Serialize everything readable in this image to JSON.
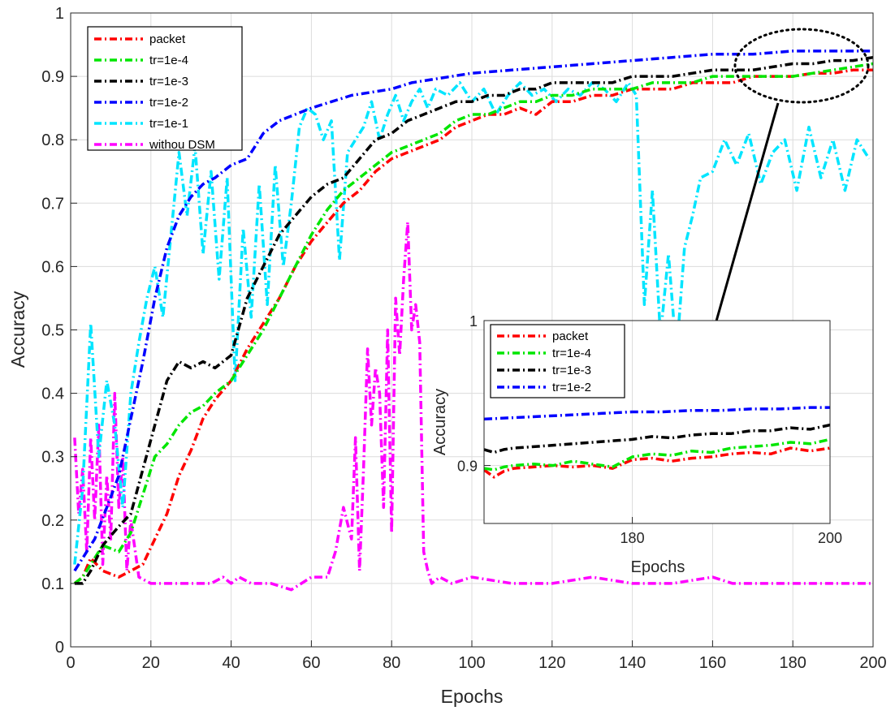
{
  "colors": {
    "packet": "#ff0000",
    "tr1e4": "#00e600",
    "tr1e3": "#000000",
    "tr1e2": "#0000ff",
    "tr1e1": "#00e5ff",
    "withoutDSM": "#ff00ff",
    "arrow": "#000000"
  },
  "chart_data": [
    {
      "type": "line",
      "title": "",
      "xlabel": "Epochs",
      "ylabel": "Accuracy",
      "xlim": [
        0,
        200
      ],
      "ylim": [
        0,
        1
      ],
      "xticks": [
        "0",
        "20",
        "40",
        "60",
        "80",
        "100",
        "120",
        "140",
        "160",
        "180",
        "200"
      ],
      "yticks": [
        "0",
        "0.1",
        "0.2",
        "0.3",
        "0.4",
        "0.5",
        "0.6",
        "0.7",
        "0.8",
        "0.9",
        "1"
      ],
      "grid": true,
      "legend_position": "top-left",
      "series": [
        {
          "name": "packet",
          "color_key": "packet",
          "x": [
            1,
            3,
            5,
            8,
            12,
            15,
            18,
            21,
            24,
            27,
            30,
            33,
            36,
            40,
            44,
            48,
            52,
            56,
            60,
            64,
            68,
            72,
            76,
            80,
            84,
            88,
            92,
            96,
            100,
            104,
            108,
            112,
            116,
            120,
            125,
            130,
            135,
            140,
            145,
            150,
            155,
            160,
            165,
            170,
            175,
            180,
            185,
            190,
            195,
            200
          ],
          "y": [
            0.1,
            0.11,
            0.14,
            0.12,
            0.11,
            0.12,
            0.13,
            0.17,
            0.21,
            0.27,
            0.31,
            0.36,
            0.39,
            0.42,
            0.47,
            0.51,
            0.55,
            0.6,
            0.64,
            0.67,
            0.7,
            0.72,
            0.75,
            0.77,
            0.78,
            0.79,
            0.8,
            0.82,
            0.83,
            0.84,
            0.84,
            0.85,
            0.84,
            0.86,
            0.86,
            0.87,
            0.87,
            0.88,
            0.88,
            0.88,
            0.89,
            0.89,
            0.89,
            0.9,
            0.9,
            0.9,
            0.905,
            0.905,
            0.91,
            0.91
          ]
        },
        {
          "name": "tr=1e-4",
          "color_key": "tr1e4",
          "x": [
            1,
            3,
            5,
            8,
            12,
            15,
            18,
            21,
            24,
            27,
            30,
            33,
            36,
            40,
            44,
            48,
            52,
            56,
            60,
            64,
            68,
            72,
            76,
            80,
            84,
            88,
            92,
            96,
            100,
            104,
            108,
            112,
            116,
            120,
            125,
            130,
            135,
            140,
            145,
            150,
            155,
            160,
            165,
            170,
            175,
            180,
            185,
            190,
            195,
            200
          ],
          "y": [
            0.1,
            0.11,
            0.13,
            0.16,
            0.15,
            0.18,
            0.24,
            0.3,
            0.32,
            0.35,
            0.37,
            0.38,
            0.4,
            0.42,
            0.46,
            0.5,
            0.55,
            0.6,
            0.65,
            0.69,
            0.72,
            0.74,
            0.76,
            0.78,
            0.79,
            0.8,
            0.81,
            0.83,
            0.84,
            0.84,
            0.85,
            0.86,
            0.86,
            0.87,
            0.87,
            0.88,
            0.88,
            0.88,
            0.89,
            0.89,
            0.89,
            0.9,
            0.9,
            0.9,
            0.9,
            0.9,
            0.905,
            0.91,
            0.915,
            0.92
          ]
        },
        {
          "name": "tr=1e-3",
          "color_key": "tr1e3",
          "x": [
            1,
            3,
            5,
            8,
            12,
            15,
            18,
            21,
            24,
            27,
            30,
            33,
            36,
            40,
            44,
            48,
            52,
            56,
            60,
            64,
            68,
            72,
            76,
            80,
            84,
            88,
            92,
            96,
            100,
            104,
            108,
            112,
            116,
            120,
            125,
            130,
            135,
            140,
            145,
            150,
            155,
            160,
            165,
            170,
            175,
            180,
            185,
            190,
            195,
            200
          ],
          "y": [
            0.1,
            0.1,
            0.12,
            0.16,
            0.19,
            0.21,
            0.28,
            0.35,
            0.42,
            0.45,
            0.44,
            0.45,
            0.44,
            0.46,
            0.55,
            0.6,
            0.65,
            0.68,
            0.71,
            0.73,
            0.74,
            0.77,
            0.8,
            0.81,
            0.83,
            0.84,
            0.85,
            0.86,
            0.86,
            0.87,
            0.87,
            0.88,
            0.88,
            0.89,
            0.89,
            0.89,
            0.89,
            0.9,
            0.9,
            0.9,
            0.905,
            0.91,
            0.91,
            0.91,
            0.915,
            0.92,
            0.92,
            0.925,
            0.925,
            0.93
          ]
        },
        {
          "name": "tr=1e-2",
          "color_key": "tr1e2",
          "x": [
            1,
            3,
            6,
            9,
            12,
            15,
            18,
            21,
            24,
            27,
            30,
            33,
            36,
            40,
            44,
            48,
            52,
            56,
            60,
            65,
            70,
            75,
            80,
            85,
            90,
            95,
            100,
            110,
            120,
            130,
            140,
            150,
            160,
            170,
            180,
            190,
            200
          ],
          "y": [
            0.12,
            0.14,
            0.17,
            0.22,
            0.27,
            0.36,
            0.45,
            0.55,
            0.63,
            0.68,
            0.71,
            0.73,
            0.74,
            0.76,
            0.77,
            0.81,
            0.83,
            0.84,
            0.85,
            0.86,
            0.87,
            0.875,
            0.88,
            0.89,
            0.895,
            0.9,
            0.905,
            0.91,
            0.915,
            0.92,
            0.925,
            0.93,
            0.935,
            0.935,
            0.94,
            0.94,
            0.94
          ]
        },
        {
          "name": "tr=1e-1",
          "color_key": "tr1e1",
          "x": [
            1,
            3,
            5,
            7,
            9,
            11,
            13,
            15,
            17,
            19,
            21,
            23,
            25,
            27,
            29,
            31,
            33,
            35,
            37,
            39,
            41,
            43,
            45,
            47,
            49,
            51,
            53,
            55,
            57,
            59,
            61,
            63,
            65,
            67,
            69,
            71,
            73,
            75,
            77,
            79,
            81,
            83,
            85,
            87,
            89,
            91,
            94,
            97,
            100,
            103,
            106,
            109,
            112,
            115,
            118,
            121,
            124,
            127,
            130,
            133,
            136,
            139,
            141,
            143,
            145,
            147,
            149,
            151,
            153,
            155,
            157,
            160,
            163,
            166,
            169,
            172,
            175,
            178,
            181,
            184,
            187,
            190,
            193,
            196,
            199
          ],
          "y": [
            0.13,
            0.25,
            0.51,
            0.3,
            0.42,
            0.35,
            0.22,
            0.4,
            0.48,
            0.55,
            0.6,
            0.52,
            0.65,
            0.78,
            0.68,
            0.79,
            0.62,
            0.75,
            0.58,
            0.74,
            0.42,
            0.66,
            0.52,
            0.73,
            0.54,
            0.76,
            0.6,
            0.7,
            0.82,
            0.85,
            0.84,
            0.8,
            0.83,
            0.61,
            0.78,
            0.8,
            0.82,
            0.86,
            0.8,
            0.84,
            0.87,
            0.83,
            0.86,
            0.88,
            0.85,
            0.88,
            0.87,
            0.89,
            0.86,
            0.88,
            0.84,
            0.87,
            0.89,
            0.87,
            0.88,
            0.86,
            0.88,
            0.87,
            0.89,
            0.88,
            0.86,
            0.89,
            0.87,
            0.54,
            0.72,
            0.49,
            0.62,
            0.46,
            0.63,
            0.68,
            0.74,
            0.75,
            0.8,
            0.76,
            0.81,
            0.73,
            0.78,
            0.8,
            0.72,
            0.82,
            0.74,
            0.8,
            0.72,
            0.8,
            0.77
          ]
        },
        {
          "name": "withou DSM",
          "color_key": "withoutDSM",
          "x": [
            1,
            2,
            3,
            4,
            5,
            6,
            7,
            8,
            9,
            10,
            11,
            12,
            13,
            14,
            15,
            17,
            20,
            25,
            30,
            35,
            38,
            40,
            42,
            45,
            50,
            55,
            60,
            64,
            66,
            68,
            70,
            71,
            72,
            73,
            74,
            75,
            76,
            77,
            78,
            79,
            80,
            81,
            82,
            83,
            84,
            85,
            86,
            87,
            88,
            89,
            90,
            92,
            95,
            100,
            110,
            120,
            130,
            140,
            150,
            160,
            165,
            170,
            180,
            190,
            200
          ],
          "y": [
            0.33,
            0.21,
            0.28,
            0.15,
            0.33,
            0.2,
            0.35,
            0.13,
            0.27,
            0.17,
            0.4,
            0.22,
            0.3,
            0.12,
            0.2,
            0.11,
            0.1,
            0.1,
            0.1,
            0.1,
            0.11,
            0.1,
            0.11,
            0.1,
            0.1,
            0.09,
            0.11,
            0.11,
            0.15,
            0.22,
            0.17,
            0.33,
            0.12,
            0.28,
            0.47,
            0.35,
            0.44,
            0.4,
            0.22,
            0.5,
            0.18,
            0.55,
            0.46,
            0.58,
            0.67,
            0.5,
            0.54,
            0.48,
            0.15,
            0.12,
            0.1,
            0.11,
            0.1,
            0.11,
            0.1,
            0.1,
            0.11,
            0.1,
            0.1,
            0.11,
            0.1,
            0.1,
            0.1,
            0.1,
            0.1
          ]
        }
      ],
      "annotations": [
        "dotted ellipse around epochs 165-205 near accuracy 0.90-0.94",
        "arrow from ellipse to inset"
      ]
    },
    {
      "type": "line",
      "title": "",
      "xlabel": "Epochs",
      "ylabel": "Accuracy",
      "xlim": [
        165,
        200
      ],
      "ylim": [
        0.86,
        1.0
      ],
      "xticks": [
        "180",
        "200"
      ],
      "yticks": [
        "0.9",
        "1"
      ],
      "grid": true,
      "legend_position": "top-left",
      "series": [
        {
          "name": "packet",
          "color_key": "packet",
          "x": [
            165,
            166,
            167,
            168,
            170,
            172,
            174,
            176,
            178,
            180,
            182,
            184,
            186,
            188,
            190,
            192,
            194,
            196,
            198,
            200
          ],
          "y": [
            0.897,
            0.892,
            0.896,
            0.898,
            0.899,
            0.9,
            0.899,
            0.9,
            0.898,
            0.904,
            0.905,
            0.903,
            0.905,
            0.906,
            0.908,
            0.909,
            0.908,
            0.912,
            0.91,
            0.912
          ]
        },
        {
          "name": "tr=1e-4",
          "color_key": "tr1e4",
          "x": [
            165,
            166,
            167,
            168,
            170,
            172,
            174,
            176,
            178,
            180,
            182,
            184,
            186,
            188,
            190,
            192,
            194,
            196,
            198,
            200
          ],
          "y": [
            0.898,
            0.897,
            0.899,
            0.9,
            0.901,
            0.9,
            0.903,
            0.901,
            0.899,
            0.906,
            0.908,
            0.907,
            0.91,
            0.909,
            0.912,
            0.913,
            0.914,
            0.916,
            0.915,
            0.918
          ]
        },
        {
          "name": "tr=1e-3",
          "color_key": "tr1e3",
          "x": [
            165,
            166,
            167,
            168,
            170,
            172,
            174,
            176,
            178,
            180,
            182,
            184,
            186,
            188,
            190,
            192,
            194,
            196,
            198,
            200
          ],
          "y": [
            0.911,
            0.909,
            0.911,
            0.912,
            0.913,
            0.914,
            0.915,
            0.916,
            0.917,
            0.918,
            0.92,
            0.919,
            0.921,
            0.922,
            0.922,
            0.924,
            0.924,
            0.926,
            0.925,
            0.928
          ]
        },
        {
          "name": "tr=1e-2",
          "color_key": "tr1e2",
          "x": [
            165,
            168,
            171,
            174,
            177,
            180,
            183,
            186,
            189,
            192,
            195,
            198,
            200
          ],
          "y": [
            0.932,
            0.933,
            0.934,
            0.935,
            0.936,
            0.937,
            0.937,
            0.938,
            0.938,
            0.939,
            0.939,
            0.94,
            0.94
          ]
        }
      ]
    }
  ]
}
